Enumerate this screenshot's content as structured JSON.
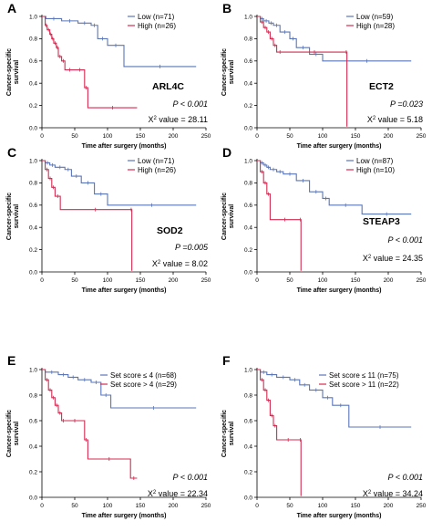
{
  "chart_data": [
    {
      "type": "line",
      "panel": "A",
      "gene": "ARL4C",
      "p_value": "P < 0.001",
      "chi_label": "X",
      "chi_sup": "2",
      "chi_value": " value = 28.11",
      "xlabel": "Time after surgery (months)",
      "ylabel": [
        "Cancer-specific",
        "survival"
      ],
      "xlim": [
        0,
        250
      ],
      "ylim": [
        0,
        1.0
      ],
      "xticks": [
        0,
        50,
        100,
        150,
        200,
        250
      ],
      "yticks": [
        0.0,
        0.2,
        0.4,
        0.6,
        0.8,
        1.0
      ],
      "ytick_labels": [
        "0.0",
        "0.2",
        "0.4",
        "0.6",
        "0.8",
        "1.0"
      ],
      "legend_position": "top-right",
      "series": [
        {
          "name": "Low (n=71)",
          "color": "#5a76b8",
          "x": [
            0,
            6,
            30,
            55,
            75,
            85,
            100,
            125,
            235
          ],
          "y": [
            1.0,
            0.98,
            0.96,
            0.94,
            0.92,
            0.8,
            0.74,
            0.55,
            0.55
          ]
        },
        {
          "name": "High (n=26)",
          "color": "#d42b52",
          "x": [
            0,
            5,
            8,
            12,
            15,
            18,
            22,
            25,
            30,
            35,
            50,
            65,
            70,
            145
          ],
          "y": [
            1.0,
            0.92,
            0.88,
            0.84,
            0.8,
            0.76,
            0.72,
            0.64,
            0.6,
            0.52,
            0.52,
            0.36,
            0.18,
            0.18
          ]
        }
      ]
    },
    {
      "type": "line",
      "panel": "B",
      "gene": "ECT2",
      "p_value": "P =0.023",
      "chi_label": "X",
      "chi_sup": "2",
      "chi_value": " value = 5.18",
      "xlabel": "Time after surgery (months)",
      "ylabel": [
        "Cancer-specific",
        "survival"
      ],
      "xlim": [
        0,
        250
      ],
      "ylim": [
        0,
        1.0
      ],
      "xticks": [
        0,
        50,
        100,
        150,
        200,
        250
      ],
      "yticks": [
        0.0,
        0.2,
        0.4,
        0.6,
        0.8,
        1.0
      ],
      "ytick_labels": [
        "0.0",
        "0.2",
        "0.4",
        "0.6",
        "0.8",
        "1.0"
      ],
      "legend_position": "top-right",
      "series": [
        {
          "name": "Low (n=59)",
          "color": "#5a76b8",
          "x": [
            0,
            5,
            10,
            18,
            25,
            35,
            50,
            60,
            80,
            100,
            235
          ],
          "y": [
            1.0,
            0.98,
            0.96,
            0.94,
            0.92,
            0.86,
            0.8,
            0.72,
            0.66,
            0.6,
            0.6
          ]
        },
        {
          "name": "High (n=28)",
          "color": "#d42b52",
          "x": [
            0,
            5,
            10,
            15,
            20,
            25,
            30,
            40,
            135,
            137
          ],
          "y": [
            1.0,
            0.95,
            0.9,
            0.86,
            0.8,
            0.74,
            0.68,
            0.68,
            0.68,
            0.01
          ]
        }
      ]
    },
    {
      "type": "line",
      "panel": "C",
      "gene": "SOD2",
      "p_value": "P =0.005",
      "chi_label": "X",
      "chi_sup": "2",
      "chi_value": " value = 8.02",
      "xlabel": "Time after surgery (months)",
      "ylabel": [
        "Cancer-specific",
        "survival"
      ],
      "xlim": [
        0,
        250
      ],
      "ylim": [
        0,
        1.0
      ],
      "xticks": [
        0,
        50,
        100,
        150,
        200,
        250
      ],
      "yticks": [
        0.0,
        0.2,
        0.4,
        0.6,
        0.8,
        1.0
      ],
      "ytick_labels": [
        "0.0",
        "0.2",
        "0.4",
        "0.6",
        "0.8",
        "1.0"
      ],
      "legend_position": "top-right",
      "series": [
        {
          "name": "Low (n=71)",
          "color": "#5a76b8",
          "x": [
            0,
            5,
            12,
            20,
            35,
            45,
            60,
            80,
            100,
            235
          ],
          "y": [
            1.0,
            0.98,
            0.96,
            0.94,
            0.92,
            0.86,
            0.8,
            0.7,
            0.6,
            0.6
          ]
        },
        {
          "name": "High (n=26)",
          "color": "#d42b52",
          "x": [
            0,
            5,
            10,
            15,
            20,
            28,
            135,
            137
          ],
          "y": [
            1.0,
            0.92,
            0.84,
            0.76,
            0.68,
            0.56,
            0.56,
            0.01
          ]
        }
      ]
    },
    {
      "type": "line",
      "panel": "D",
      "gene": "STEAP3",
      "p_value": "P < 0.001",
      "chi_label": "X",
      "chi_sup": "2",
      "chi_value": " value = 24.35",
      "xlabel": "Time after surgery (months)",
      "ylabel": [
        "Cancer-specific",
        "survival"
      ],
      "xlim": [
        0,
        250
      ],
      "ylim": [
        0,
        1.0
      ],
      "xticks": [
        0,
        50,
        100,
        150,
        200,
        250
      ],
      "yticks": [
        0.0,
        0.2,
        0.4,
        0.6,
        0.8,
        1.0
      ],
      "ytick_labels": [
        "0.0",
        "0.2",
        "0.4",
        "0.6",
        "0.8",
        "1.0"
      ],
      "legend_position": "top-right",
      "series": [
        {
          "name": "Low (n=87)",
          "color": "#5a76b8",
          "x": [
            0,
            5,
            10,
            15,
            20,
            30,
            40,
            60,
            80,
            100,
            110,
            160,
            235
          ],
          "y": [
            1.0,
            0.98,
            0.96,
            0.94,
            0.92,
            0.9,
            0.88,
            0.82,
            0.72,
            0.66,
            0.6,
            0.52,
            0.52
          ]
        },
        {
          "name": "High (n=10)",
          "color": "#d42b52",
          "x": [
            0,
            5,
            10,
            15,
            20,
            65,
            67
          ],
          "y": [
            1.0,
            0.9,
            0.8,
            0.7,
            0.47,
            0.47,
            0.01
          ]
        }
      ]
    },
    {
      "type": "line",
      "panel": "E",
      "gene": "",
      "p_value": "P < 0.001",
      "chi_label": "X",
      "chi_sup": "2",
      "chi_value": " value = 22.34",
      "xlabel": "Time after surgery (months)",
      "ylabel": [
        "Cancer-specific",
        "survival"
      ],
      "xlim": [
        0,
        250
      ],
      "ylim": [
        0,
        1.0
      ],
      "xticks": [
        0,
        50,
        100,
        150,
        200,
        250
      ],
      "yticks": [
        0.0,
        0.2,
        0.4,
        0.6,
        0.8,
        1.0
      ],
      "ytick_labels": [
        "0.0",
        "0.2",
        "0.4",
        "0.6",
        "0.8",
        "1.0"
      ],
      "legend_position": "top-right",
      "series": [
        {
          "name": "Set score ≤ 4 (n=68)",
          "color": "#5a76b8",
          "x": [
            0,
            5,
            25,
            40,
            55,
            75,
            90,
            105,
            235
          ],
          "y": [
            1.0,
            0.98,
            0.96,
            0.94,
            0.92,
            0.9,
            0.8,
            0.7,
            0.7
          ]
        },
        {
          "name": "Set score > 4 (n=29)",
          "color": "#d42b52",
          "x": [
            0,
            5,
            10,
            15,
            20,
            25,
            30,
            35,
            65,
            70,
            135,
            145
          ],
          "y": [
            1.0,
            0.92,
            0.84,
            0.78,
            0.72,
            0.66,
            0.6,
            0.6,
            0.45,
            0.3,
            0.15,
            0.15
          ]
        }
      ]
    },
    {
      "type": "line",
      "panel": "F",
      "gene": "",
      "p_value": "P < 0.001",
      "chi_label": "X",
      "chi_sup": "2",
      "chi_value": " value = 34.24",
      "xlabel": "Time after surgery (months)",
      "ylabel": [
        "Cancer-specific",
        "survival"
      ],
      "xlim": [
        0,
        250
      ],
      "ylim": [
        0,
        1.0
      ],
      "xticks": [
        0,
        50,
        100,
        150,
        200,
        250
      ],
      "yticks": [
        0.0,
        0.2,
        0.4,
        0.6,
        0.8,
        1.0
      ],
      "ytick_labels": [
        "0.0",
        "0.2",
        "0.4",
        "0.6",
        "0.8",
        "1.0"
      ],
      "legend_position": "top-right",
      "series": [
        {
          "name": "Set score ≤ 11 (n=75)",
          "color": "#5a76b8",
          "x": [
            0,
            5,
            15,
            30,
            50,
            65,
            80,
            100,
            115,
            140,
            235
          ],
          "y": [
            1.0,
            0.98,
            0.96,
            0.94,
            0.92,
            0.88,
            0.84,
            0.78,
            0.72,
            0.55,
            0.55
          ]
        },
        {
          "name": "Set score > 11 (n=22)",
          "color": "#d42b52",
          "x": [
            0,
            5,
            10,
            15,
            20,
            25,
            30,
            65,
            67
          ],
          "y": [
            1.0,
            0.92,
            0.84,
            0.76,
            0.64,
            0.56,
            0.45,
            0.45,
            0.01
          ]
        }
      ]
    }
  ]
}
